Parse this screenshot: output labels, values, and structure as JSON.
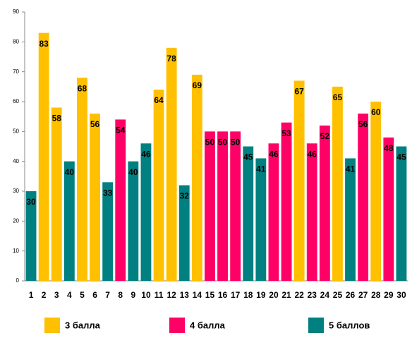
{
  "chart_data": {
    "type": "bar",
    "categories": [
      "1",
      "2",
      "3",
      "4",
      "5",
      "6",
      "7",
      "8",
      "9",
      "10",
      "11",
      "12",
      "13",
      "14",
      "15",
      "16",
      "17",
      "18",
      "19",
      "20",
      "21",
      "22",
      "23",
      "24",
      "25",
      "26",
      "27",
      "28",
      "29",
      "30"
    ],
    "series": [
      {
        "name": "3 балла",
        "color": "#FFC000",
        "values": [
          null,
          83,
          58,
          null,
          68,
          56,
          null,
          null,
          null,
          null,
          64,
          78,
          null,
          69,
          null,
          null,
          null,
          null,
          null,
          null,
          null,
          67,
          null,
          null,
          65,
          null,
          null,
          60,
          null,
          null
        ]
      },
      {
        "name": "4 балла",
        "color": "#FF0066",
        "values": [
          null,
          null,
          null,
          null,
          null,
          null,
          null,
          54,
          null,
          null,
          null,
          null,
          null,
          null,
          50,
          50,
          50,
          null,
          null,
          46,
          53,
          null,
          46,
          52,
          null,
          null,
          56,
          null,
          48,
          null
        ]
      },
      {
        "name": "5 баллов",
        "color": "#008080",
        "values": [
          30,
          null,
          null,
          40,
          null,
          null,
          33,
          null,
          40,
          46,
          null,
          null,
          32,
          null,
          null,
          null,
          null,
          45,
          41,
          null,
          null,
          null,
          null,
          null,
          null,
          41,
          null,
          null,
          null,
          45
        ]
      }
    ],
    "ylim": [
      0,
      90
    ],
    "yticks": [
      0,
      10,
      20,
      30,
      40,
      50,
      60,
      70,
      80,
      90
    ],
    "grid": false
  }
}
